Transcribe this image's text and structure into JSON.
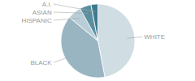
{
  "chart_data": {
    "type": "pie",
    "categories": [
      "WHITE",
      "BLACK",
      "HISPANIC",
      "ASIAN",
      "A.I."
    ],
    "values": [
      47,
      39,
      6,
      5,
      3
    ],
    "colors": [
      "#d0dde3",
      "#9ab5c2",
      "#b8cdd6",
      "#5a8fa0",
      "#3d7a8e"
    ]
  }
}
